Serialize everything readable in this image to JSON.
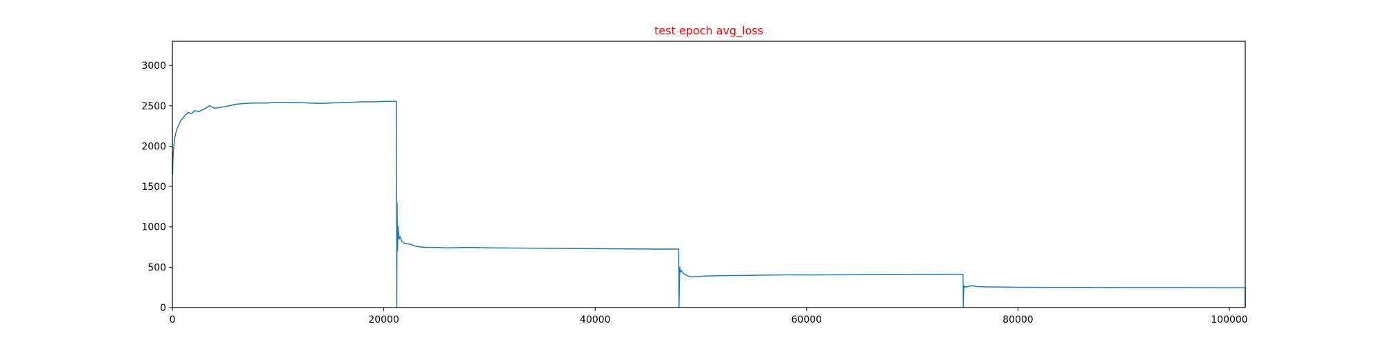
{
  "chart_data": {
    "type": "line",
    "title": "test epoch avg_loss",
    "title_color": "#ff0000",
    "line_color": "#1f77b4",
    "xlabel": "",
    "ylabel": "",
    "xlim": [
      0,
      101500
    ],
    "ylim": [
      0,
      3300
    ],
    "grid": false,
    "legend": "none",
    "xticks": [
      0,
      20000,
      40000,
      60000,
      80000,
      100000
    ],
    "yticks": [
      0,
      500,
      1000,
      1500,
      2000,
      2500,
      3000
    ],
    "series": [
      {
        "x": [
          0,
          20,
          60,
          120,
          200,
          300,
          450,
          600,
          800,
          1000,
          1200,
          1500,
          1800,
          2100,
          2500,
          3000,
          3500,
          4000,
          5000,
          6000,
          7000,
          8000,
          9000,
          10000,
          11000,
          12000,
          13000,
          14000,
          15000,
          16000,
          17000,
          18000,
          19000,
          20000,
          21200,
          21230,
          21260,
          21300,
          21360,
          21450,
          21550,
          21700,
          21900,
          22200,
          22600,
          23000,
          23500,
          24000,
          25000,
          26000,
          28000,
          30000,
          32000,
          34000,
          36000,
          38000,
          40000,
          42000,
          44000,
          46000,
          47900,
          47930,
          47960,
          48000,
          48060,
          48150,
          48300,
          48500,
          48800,
          49200,
          49700,
          50300,
          51000,
          52000,
          54000,
          56000,
          58000,
          60000,
          62000,
          64000,
          66000,
          68000,
          70000,
          72000,
          74000,
          74800,
          74830,
          74860,
          74900,
          74950,
          75050,
          75200,
          75400,
          75700,
          76100,
          76600,
          77200,
          78000,
          80000,
          82000,
          85000,
          88000,
          91000,
          94000,
          97000,
          100000,
          101500,
          101500
        ],
        "y": [
          1700,
          1650,
          1850,
          1980,
          2080,
          2150,
          2220,
          2260,
          2320,
          2350,
          2380,
          2420,
          2400,
          2440,
          2430,
          2460,
          2500,
          2470,
          2490,
          2520,
          2530,
          2535,
          2535,
          2545,
          2540,
          2540,
          2535,
          2530,
          2535,
          2540,
          2545,
          2550,
          2550,
          2555,
          2555,
          0,
          1300,
          700,
          1000,
          850,
          880,
          820,
          800,
          790,
          780,
          760,
          750,
          745,
          745,
          740,
          745,
          740,
          738,
          736,
          734,
          732,
          730,
          728,
          726,
          725,
          725,
          0,
          200,
          500,
          440,
          460,
          430,
          410,
          390,
          380,
          385,
          390,
          392,
          395,
          398,
          402,
          405,
          404,
          405,
          406,
          408,
          409,
          410,
          411,
          412,
          412,
          0,
          200,
          270,
          250,
          260,
          255,
          265,
          270,
          260,
          258,
          256,
          255,
          252,
          250,
          249,
          248,
          247,
          247,
          246,
          245,
          245,
          0
        ]
      }
    ]
  }
}
